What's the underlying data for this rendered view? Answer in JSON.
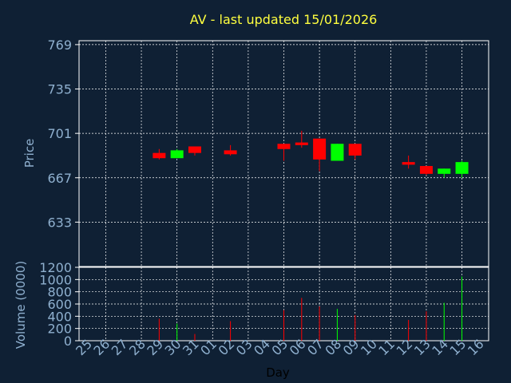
{
  "chart_data": {
    "type": "candlestick",
    "title": "AV - last updated 15/01/2026",
    "xlabel": "Day",
    "ylabel_price": "Price",
    "ylabel_volume": "Volume (0000)",
    "x_tick_labels": [
      "25",
      "26",
      "27",
      "28",
      "29",
      "30",
      "31",
      "01",
      "02",
      "03",
      "04",
      "05",
      "06",
      "07",
      "08",
      "09",
      "10",
      "11",
      "12",
      "13",
      "14",
      "15",
      "16"
    ],
    "price_axis": {
      "ylim": [
        599,
        772
      ],
      "ticks": [
        769,
        735,
        701,
        667,
        633
      ]
    },
    "volume_axis": {
      "ylim": [
        0,
        1200
      ],
      "ticks": [
        1200,
        1000,
        800,
        600,
        400,
        200,
        0
      ]
    },
    "grid": true,
    "colors": {
      "up": "#00ff00",
      "down": "#ff0000",
      "title": "#ffff3f",
      "tick": "#8fb0cf",
      "background": "#0f2034",
      "plot_border": "#ffffff"
    },
    "candles": [
      {
        "day": "29",
        "open": 686,
        "high": 689,
        "low": 681,
        "close": 682,
        "volume": 360
      },
      {
        "day": "30",
        "open": 682,
        "high": 689,
        "low": 682,
        "close": 688,
        "volume": 280
      },
      {
        "day": "31",
        "open": 691,
        "high": 691,
        "low": 684,
        "close": 686,
        "volume": 110
      },
      {
        "day": "02",
        "open": 688,
        "high": 692,
        "low": 684,
        "close": 685,
        "volume": 320
      },
      {
        "day": "05",
        "open": 693,
        "high": 693,
        "low": 680,
        "close": 689,
        "volume": 500
      },
      {
        "day": "06",
        "open": 694,
        "high": 703,
        "low": 690,
        "close": 692,
        "volume": 700
      },
      {
        "day": "07",
        "open": 697,
        "high": 697,
        "low": 672,
        "close": 681,
        "volume": 560
      },
      {
        "day": "08",
        "open": 680,
        "high": 693,
        "low": 680,
        "close": 693,
        "volume": 520
      },
      {
        "day": "09",
        "open": 693,
        "high": 693,
        "low": 681,
        "close": 684,
        "volume": 420
      },
      {
        "day": "12",
        "open": 679,
        "high": 684,
        "low": 674,
        "close": 677,
        "volume": 340
      },
      {
        "day": "13",
        "open": 676,
        "high": 676,
        "low": 669,
        "close": 670,
        "volume": 480
      },
      {
        "day": "14",
        "open": 670,
        "high": 674,
        "low": 667,
        "close": 674,
        "volume": 620
      },
      {
        "day": "15",
        "open": 670,
        "high": 680,
        "low": 667,
        "close": 679,
        "volume": 1050
      }
    ]
  }
}
